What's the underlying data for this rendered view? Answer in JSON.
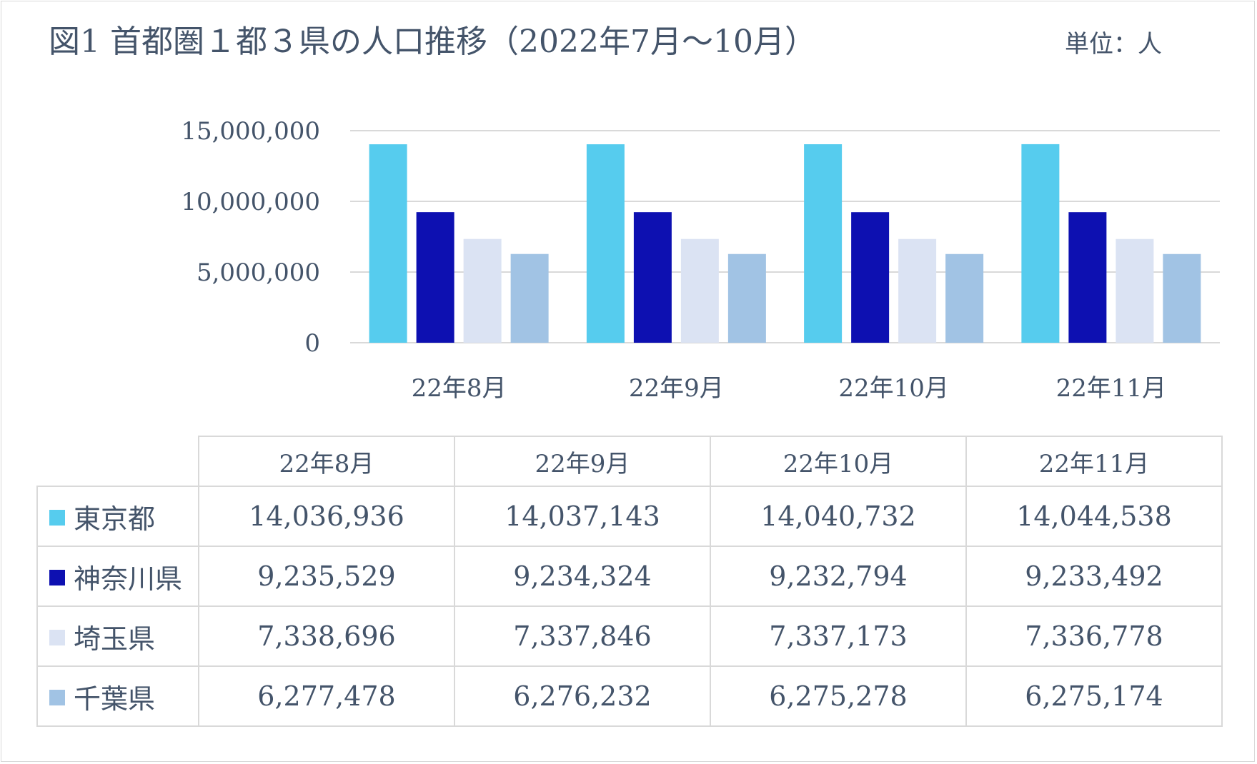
{
  "title": "図1 首都圏１都３県の人口推移（2022年7月～10月）",
  "unit": "単位：人",
  "chart_data": {
    "type": "bar",
    "categories": [
      "22年8月",
      "22年9月",
      "22年10月",
      "22年11月"
    ],
    "y_ticks": [
      "0",
      "5,000,000",
      "10,000,000",
      "15,000,000"
    ],
    "ylim": [
      0,
      15000000
    ],
    "grid": true,
    "series": [
      {
        "name": "東京都",
        "color": "#56ccee",
        "values": [
          14036936,
          14037143,
          14040732,
          14044538
        ],
        "labels": [
          "14,036,936",
          "14,037,143",
          "14,040,732",
          "14,044,538"
        ]
      },
      {
        "name": "神奈川県",
        "color": "#0d10b1",
        "values": [
          9235529,
          9234324,
          9232794,
          9233492
        ],
        "labels": [
          "9,235,529",
          "9,234,324",
          "9,232,794",
          "9,233,492"
        ]
      },
      {
        "name": "埼玉県",
        "color": "#dbe3f3",
        "values": [
          7338696,
          7337846,
          7337173,
          7336778
        ],
        "labels": [
          "7,338,696",
          "7,337,846",
          "7,337,173",
          "7,336,778"
        ]
      },
      {
        "name": "千葉県",
        "color": "#a1c3e4",
        "values": [
          6277478,
          6276232,
          6275278,
          6275174
        ],
        "labels": [
          "6,277,478",
          "6,276,232",
          "6,275,278",
          "6,275,174"
        ]
      }
    ]
  }
}
